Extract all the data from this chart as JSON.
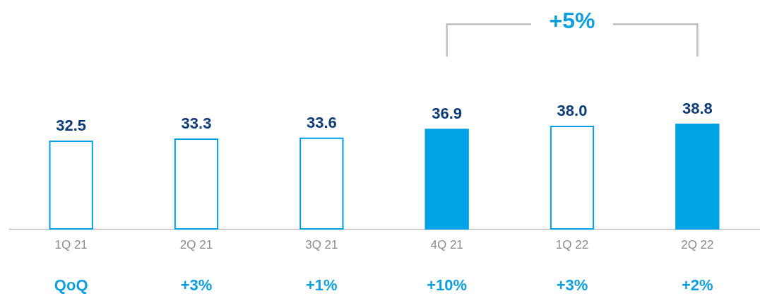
{
  "chart_data": {
    "type": "bar",
    "categories": [
      "1Q 21",
      "2Q 21",
      "3Q 21",
      "4Q 21",
      "1Q 22",
      "2Q 22"
    ],
    "values": [
      32.5,
      33.3,
      33.6,
      36.9,
      38.0,
      38.8
    ],
    "colors": [
      "#ffffff",
      "#ffffff",
      "#ffffff",
      "#00a3e6",
      "#ffffff",
      "#00a3e6"
    ],
    "value_labels": [
      "32.5",
      "33.3",
      "33.6",
      "36.9",
      "38.0",
      "38.8"
    ],
    "annotations": [
      "+5%",
      "QoQ",
      "+3%",
      "+1%",
      "+10%",
      "+3%",
      "+2%"
    ]
  }
}
